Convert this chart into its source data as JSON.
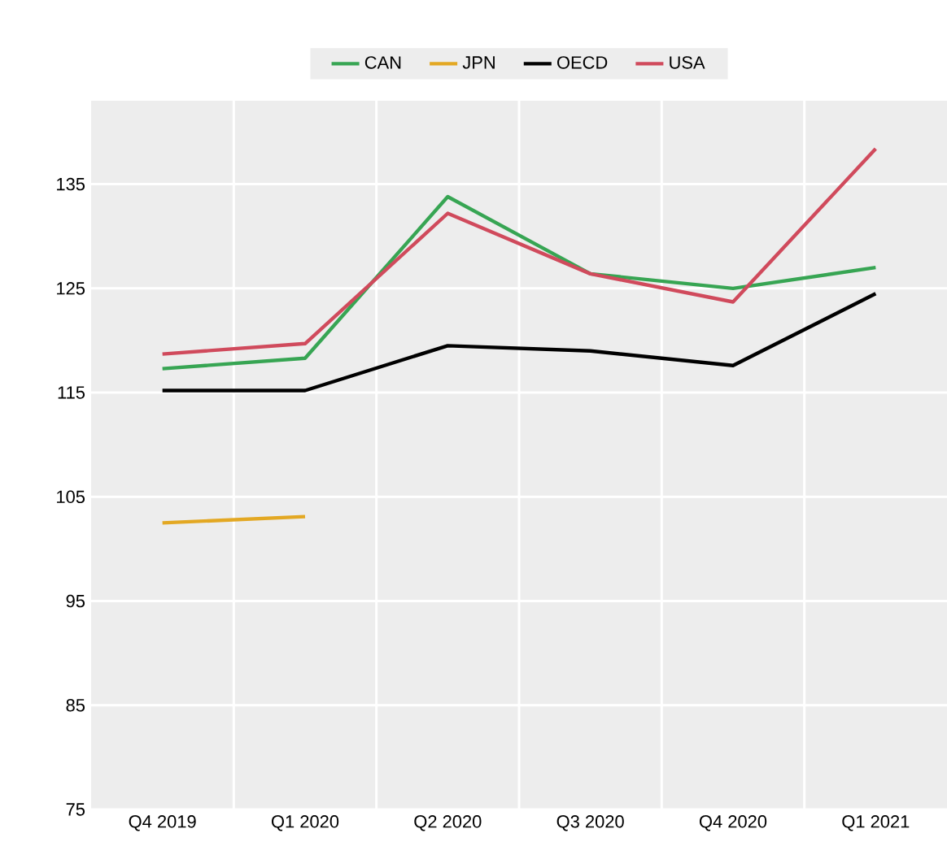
{
  "chart_data": {
    "type": "line",
    "categories": [
      "Q4 2019",
      "Q1 2020",
      "Q2 2020",
      "Q3 2020",
      "Q4 2020",
      "Q1 2021"
    ],
    "series": [
      {
        "name": "CAN",
        "color": "#37a553",
        "values": [
          117.3,
          118.3,
          133.8,
          126.4,
          125.0,
          127.0
        ]
      },
      {
        "name": "JPN",
        "color": "#e3a823",
        "values": [
          102.5,
          103.1,
          null,
          null,
          null,
          null
        ]
      },
      {
        "name": "OECD",
        "color": "#000000",
        "values": [
          115.2,
          115.2,
          119.5,
          119.0,
          117.6,
          124.5
        ]
      },
      {
        "name": "USA",
        "color": "#d04a5c",
        "values": [
          118.7,
          119.7,
          132.2,
          126.4,
          123.7,
          138.4
        ]
      }
    ],
    "ylim": [
      75,
      143
    ],
    "yticks": [
      75,
      85,
      95,
      105,
      115,
      125,
      135
    ],
    "grid": true,
    "legend": "top",
    "marker": "none",
    "line_style": "solid"
  }
}
